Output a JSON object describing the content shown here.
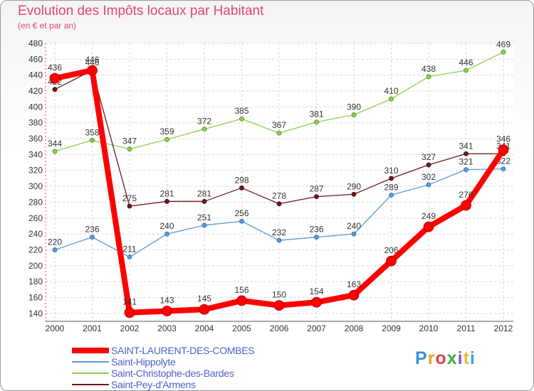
{
  "header": {
    "title": "Evolution des Impôts locaux par Habitant",
    "subtitle": "(en € et par an)"
  },
  "chart_data": {
    "type": "line",
    "title": "Evolution des Impôts locaux par Habitant",
    "subtitle": "(en € et par an)",
    "xlabel": "",
    "ylabel": "",
    "ylim": [
      130,
      480
    ],
    "yticks": [
      140,
      160,
      180,
      200,
      220,
      240,
      260,
      280,
      300,
      320,
      340,
      360,
      380,
      400,
      420,
      440,
      460,
      480
    ],
    "grid": true,
    "x": [
      "2000",
      "2001",
      "2002",
      "2003",
      "2004",
      "2005",
      "2006",
      "2007",
      "2008",
      "2009",
      "2010",
      "2011",
      "2012"
    ],
    "series": [
      {
        "name": "Saint-Christophe-des-Bardes",
        "color": "#8ed050",
        "values": [
          344,
          358,
          347,
          359,
          372,
          385,
          367,
          381,
          390,
          410,
          438,
          446,
          469
        ]
      },
      {
        "name": "Saint-Hippolyte",
        "color": "#5b9bd5",
        "values": [
          220,
          236,
          211,
          240,
          251,
          256,
          232,
          236,
          240,
          289,
          302,
          321,
          322
        ]
      },
      {
        "name": "Saint-Pey-d'Armens",
        "color": "#6e1a1a",
        "values": [
          422,
          446,
          275,
          281,
          281,
          298,
          278,
          287,
          290,
          310,
          327,
          341,
          341
        ]
      },
      {
        "name": "SAINT-LAURENT-DES-COMBES",
        "color": "#ff0000",
        "values": [
          436,
          446,
          141,
          143,
          145,
          156,
          150,
          154,
          163,
          206,
          249,
          276,
          346
        ]
      }
    ],
    "legend": [
      "SAINT-LAURENT-DES-COMBES",
      "Saint-Hippolyte",
      "Saint-Christophe-des-Bardes",
      "Saint-Pey-d'Armens"
    ],
    "legend_position": "bottom-left"
  },
  "logo": {
    "text": "Proxiti",
    "colors": [
      "#3a8ee0",
      "#f0a020",
      "#e04040",
      "#40b040",
      "#8a50d0",
      "#e0c030",
      "#40a0e0"
    ]
  }
}
